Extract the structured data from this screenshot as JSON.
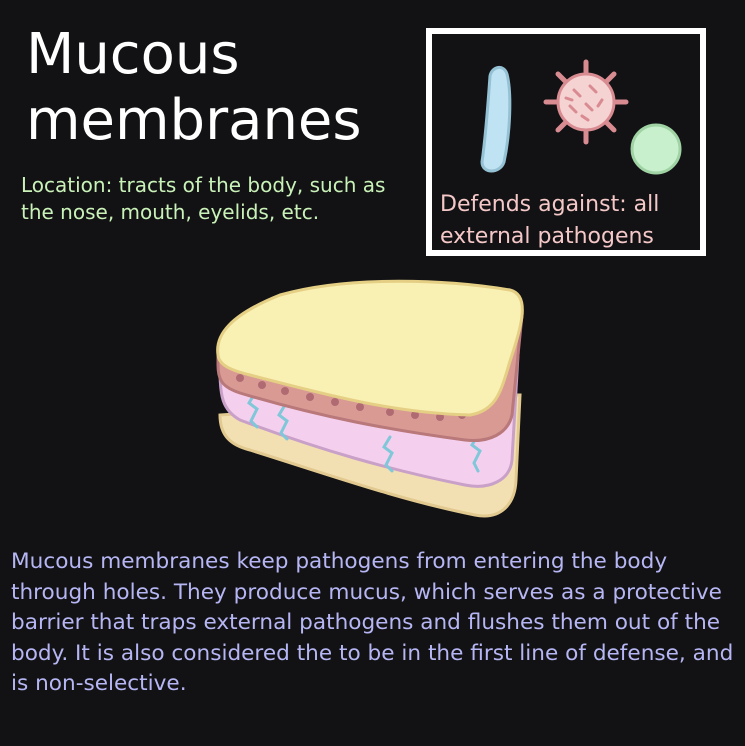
{
  "title_line1": "Mucous",
  "title_line2": "membranes",
  "location": "Location: tracts of the body, such as the nose, mouth, eyelids, etc.",
  "defends": "Defends against: all external pathogens",
  "description": "Mucous membranes keep pathogens from entering the body through holes. They produce mucus, which serves as a protective barrier that traps external pathogens and flushes them out of the body. It is also considered the to be in the first line of defense, and is non-selective.",
  "colors": {
    "background": "#121214",
    "title": "#ffffff",
    "location_text": "#c9f2b8",
    "defends_text": "#f5c8c8",
    "description_text": "#b6b6f5",
    "box_border": "#ffffff"
  },
  "icons": [
    "rod-bacterium-icon",
    "virus-icon",
    "coccus-bacterium-icon",
    "membrane-tissue-illustration"
  ]
}
